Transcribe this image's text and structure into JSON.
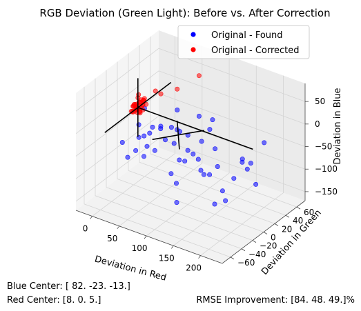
{
  "chart_data": {
    "type": "scatter",
    "projection": "3d",
    "title": "RGB Deviation (Green Light): Before vs. After Correction",
    "xlabel": "Deviation in Red",
    "ylabel": "Deviation in Green",
    "zlabel": "Deviation in Blue",
    "xlim": [
      -30,
      240
    ],
    "ylim": [
      -75,
      75
    ],
    "zlim": [
      -170,
      90
    ],
    "xticks": [
      "0",
      "50",
      "100",
      "150",
      "200"
    ],
    "yticks": [
      "−60",
      "−40",
      "−20",
      "0",
      "20",
      "40",
      "60"
    ],
    "zticks": [
      "−150",
      "−100",
      "−50",
      "0",
      "50"
    ],
    "grid": true,
    "legend_position": "top-right",
    "legend": [
      {
        "label": "Original - Found",
        "color": "#0000ff"
      },
      {
        "label": "Original - Corrected",
        "color": "#ff0000"
      }
    ],
    "colors": {
      "found": "#0000ff",
      "corrected": "#ff0000",
      "center_lines": "#000000"
    },
    "series": [
      {
        "name": "Original - Found",
        "color": "#0000ff",
        "points": [
          [
            82,
            -23,
            -13
          ],
          [
            120,
            -10,
            -40
          ],
          [
            150,
            -30,
            -20
          ],
          [
            60,
            -10,
            -10
          ],
          [
            40,
            -5,
            -20
          ],
          [
            30,
            -20,
            -5
          ],
          [
            90,
            10,
            -30
          ],
          [
            110,
            -40,
            -60
          ],
          [
            70,
            -50,
            -30
          ],
          [
            180,
            20,
            -60
          ],
          [
            200,
            -30,
            -90
          ],
          [
            160,
            40,
            -80
          ],
          [
            140,
            -60,
            -50
          ],
          [
            50,
            30,
            -10
          ],
          [
            100,
            0,
            -50
          ],
          [
            20,
            -40,
            -30
          ],
          [
            130,
            10,
            -100
          ],
          [
            170,
            -20,
            -120
          ],
          [
            190,
            50,
            -40
          ],
          [
            220,
            -10,
            -30
          ],
          [
            10,
            10,
            -5
          ],
          [
            60,
            20,
            -40
          ],
          [
            85,
            -45,
            -15
          ],
          [
            115,
            25,
            -20
          ],
          [
            145,
            -15,
            -70
          ],
          [
            75,
            -5,
            -5
          ],
          [
            95,
            30,
            -60
          ],
          [
            125,
            -30,
            -35
          ],
          [
            35,
            -10,
            -60
          ],
          [
            65,
            -60,
            -10
          ],
          [
            155,
            60,
            -110
          ],
          [
            105,
            -25,
            -140
          ],
          [
            45,
            5,
            -25
          ],
          [
            175,
            -50,
            -15
          ],
          [
            135,
            15,
            -45
          ],
          [
            55,
            -35,
            -5
          ],
          [
            185,
            0,
            -75
          ],
          [
            25,
            -15,
            -40
          ],
          [
            80,
            40,
            -20
          ],
          [
            210,
            -45,
            -50
          ],
          [
            90,
            -15,
            -25
          ],
          [
            70,
            15,
            -35
          ],
          [
            110,
            35,
            -10
          ],
          [
            160,
            -5,
            -55
          ],
          [
            40,
            -50,
            -45
          ],
          [
            200,
            25,
            -105
          ],
          [
            120,
            -35,
            -30
          ],
          [
            50,
            -20,
            -15
          ]
        ]
      },
      {
        "name": "Original - Corrected",
        "color": "#ff0000",
        "points": [
          [
            8,
            0,
            5
          ],
          [
            5,
            5,
            10
          ],
          [
            12,
            -5,
            0
          ],
          [
            3,
            2,
            8
          ],
          [
            10,
            8,
            15
          ],
          [
            6,
            -8,
            3
          ],
          [
            15,
            3,
            20
          ],
          [
            2,
            -3,
            -5
          ],
          [
            9,
            10,
            12
          ],
          [
            14,
            -2,
            7
          ],
          [
            4,
            6,
            2
          ],
          [
            11,
            -6,
            10
          ],
          [
            7,
            1,
            25
          ],
          [
            13,
            4,
            -2
          ],
          [
            1,
            -1,
            6
          ],
          [
            16,
            7,
            9
          ],
          [
            5,
            -4,
            14
          ],
          [
            10,
            2,
            -8
          ],
          [
            8,
            9,
            4
          ],
          [
            12,
            -9,
            11
          ],
          [
            6,
            3,
            30
          ],
          [
            3,
            -7,
            1
          ],
          [
            9,
            5,
            18
          ],
          [
            15,
            -3,
            3
          ],
          [
            2,
            8,
            7
          ],
          [
            11,
            0,
            -3
          ],
          [
            7,
            -5,
            16
          ],
          [
            14,
            6,
            22
          ],
          [
            4,
            -2,
            9
          ],
          [
            10,
            -8,
            5
          ],
          [
            8,
            4,
            13
          ],
          [
            6,
            0,
            0
          ],
          [
            60,
            20,
            50
          ],
          [
            80,
            40,
            70
          ],
          [
            40,
            10,
            40
          ],
          [
            25,
            15,
            35
          ],
          [
            13,
            1,
            6
          ],
          [
            5,
            -6,
            12
          ],
          [
            9,
            -1,
            2
          ],
          [
            12,
            5,
            8
          ]
        ]
      }
    ]
  },
  "annotations": {
    "blue_center": "Blue Center: [ 82. -23. -13.]",
    "red_center": "Red Center: [8. 0. 5.]",
    "rmse": "RMSE Improvement: [84. 48. 49.]%"
  }
}
